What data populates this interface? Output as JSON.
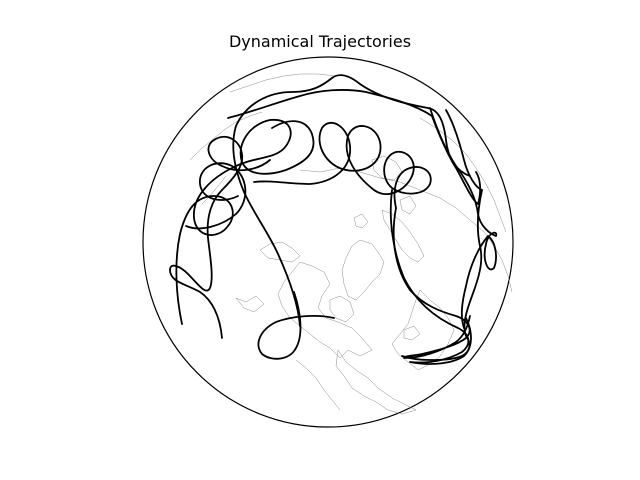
{
  "figure": {
    "title": "Dynamical Trajectories"
  },
  "map": {
    "projection": "orthographic-north-polar",
    "globe_outline_color": "#000000",
    "coastline_color": "#8a8a8a",
    "trajectory_color": "#000000",
    "background_color": "#ffffff"
  }
}
